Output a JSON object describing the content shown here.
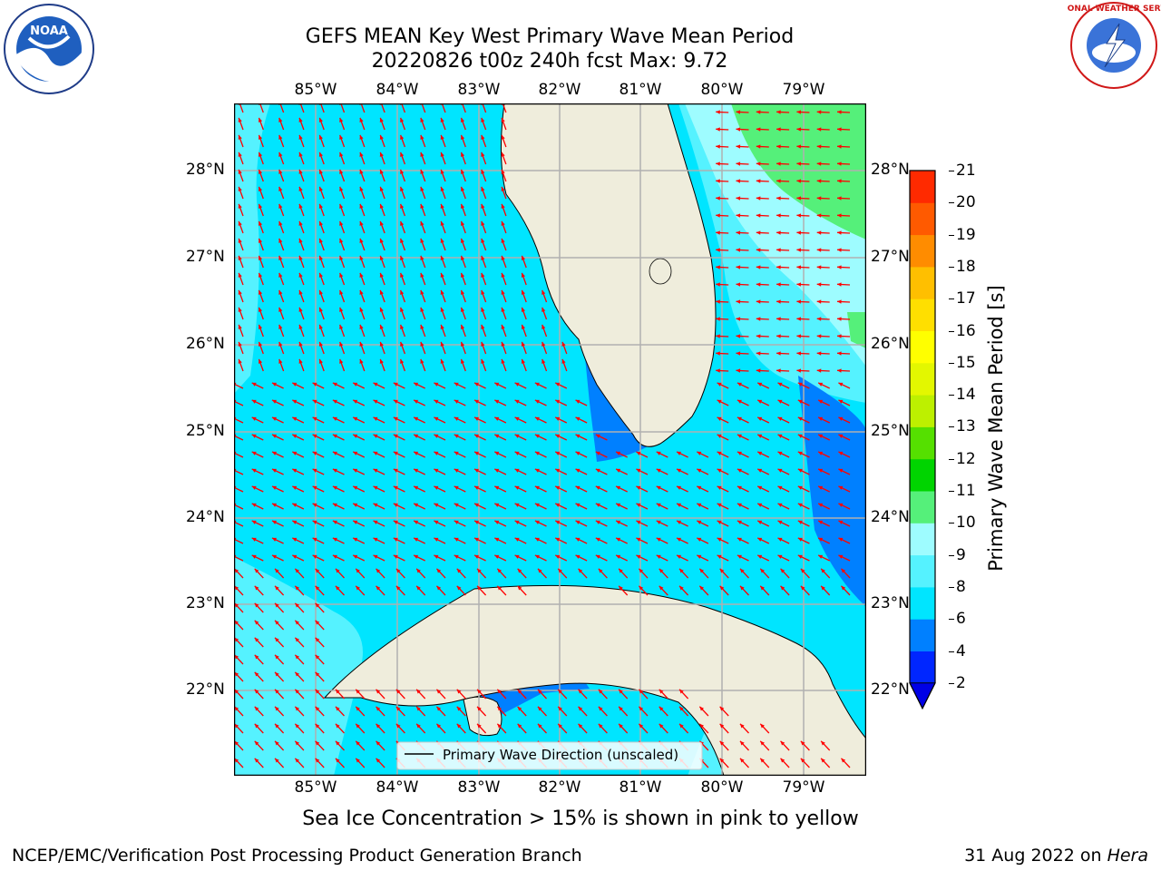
{
  "header": {
    "title_line1": "GEFS MEAN Key West Primary Wave Mean Period",
    "title_line2": "20220826 t00z 240h fcst   Max: 9.72",
    "left_logo_text": "NOAA",
    "left_logo_ring": "NATIONAL OCEANIC AND ATMOSPHERIC ADMINISTRATION · U.S. DEPARTMENT OF COMMERCE",
    "right_logo_ring": "NATIONAL WEATHER SERVICE"
  },
  "map": {
    "lon_labels": [
      "85°W",
      "84°W",
      "83°W",
      "82°W",
      "81°W",
      "80°W",
      "79°W"
    ],
    "lat_labels": [
      "28°N",
      "27°N",
      "26°N",
      "25°N",
      "24°N",
      "23°N",
      "22°N"
    ],
    "legend_label": "Primary Wave Direction (unscaled)"
  },
  "colorbar": {
    "label": "Primary Wave Mean Period [s]",
    "ticks": [
      "2",
      "4",
      "6",
      "8",
      "9",
      "10",
      "11",
      "12",
      "13",
      "14",
      "15",
      "16",
      "17",
      "18",
      "19",
      "20",
      "21"
    ],
    "colors": [
      "#0026ff",
      "#0080ff",
      "#00e5ff",
      "#55f2ff",
      "#9efcff",
      "#55f07a",
      "#00d400",
      "#55e000",
      "#bdf000",
      "#e3f700",
      "#ffff00",
      "#ffdf00",
      "#ffbf00",
      "#ff8c00",
      "#ff5a00",
      "#ff2a00"
    ],
    "extend_color": "#0000e6"
  },
  "colors": {
    "land": "#efeddc",
    "vector": "#ff0000",
    "grid": "#b0b0b0"
  },
  "caption": "Sea Ice Concentration > 15% is shown in pink to yellow",
  "footer": {
    "left": "NCEP/EMC/Verification Post Processing Product Generation Branch",
    "right_date": "31 Aug 2022 on ",
    "right_machine": "Hera"
  }
}
